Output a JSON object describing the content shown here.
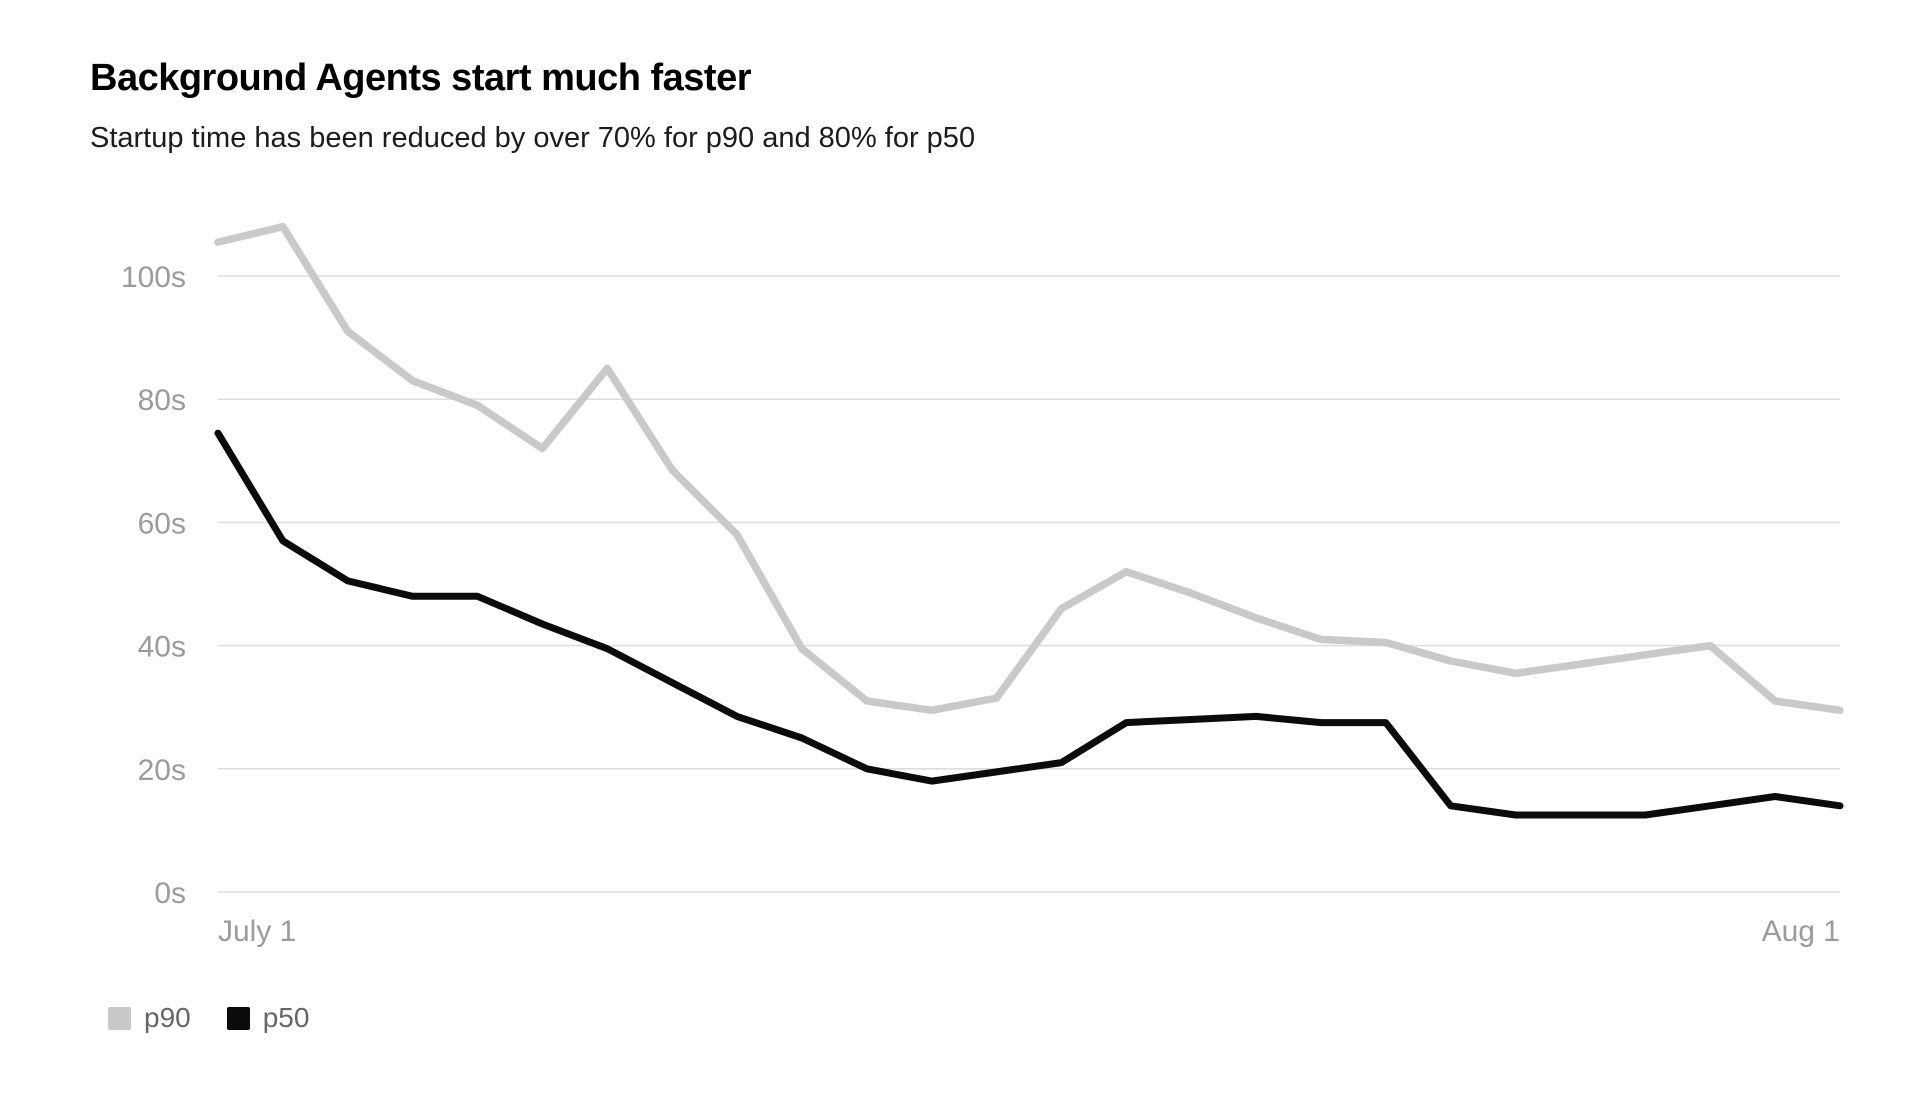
{
  "header": {
    "title": "Background Agents start much faster",
    "subtitle": "Startup time has been reduced by over 70% for p90 and 80% for p50"
  },
  "chart_data": {
    "type": "line",
    "title": "Background Agents start much faster",
    "subtitle": "Startup time has been reduced by over 70% for p90 and 80% for p50",
    "x_axis_labels": [
      "July 1",
      "Aug 1"
    ],
    "n_points": 26,
    "x_range_note": "26 evenly spaced points from July 1 to Aug 1",
    "y_ticks": [
      {
        "label": "0s",
        "value": 0
      },
      {
        "label": "20s",
        "value": 20
      },
      {
        "label": "40s",
        "value": 40
      },
      {
        "label": "60s",
        "value": 60
      },
      {
        "label": "80s",
        "value": 80
      },
      {
        "label": "100s",
        "value": 100
      }
    ],
    "ylim": [
      0,
      100
    ],
    "grid": "horizontal",
    "legend_position": "bottom-left",
    "series": [
      {
        "name": "p90",
        "color": "#c9c9c9",
        "values": [
          105.5,
          108,
          91,
          83,
          79,
          72,
          85,
          68.5,
          58,
          39.5,
          31,
          29.5,
          31.5,
          46,
          52,
          48.5,
          44.5,
          41,
          40.5,
          37.5,
          35.5,
          37,
          38.5,
          40,
          31,
          29.5
        ]
      },
      {
        "name": "p50",
        "color": "#0b0b0b",
        "values": [
          74.5,
          57,
          50.5,
          48,
          48,
          43.5,
          39.5,
          34,
          28.5,
          25,
          20,
          18,
          19.5,
          21,
          27.5,
          28,
          28.5,
          27.5,
          27.5,
          14,
          12.5,
          12.5,
          12.5,
          14,
          15.5,
          14
        ]
      }
    ],
    "colors": {
      "grid": "#dedede",
      "axis_text": "#9b9b9b",
      "background": "#ffffff"
    }
  },
  "legend": {
    "items": [
      {
        "label": "p90",
        "color": "#c9c9c9"
      },
      {
        "label": "p50",
        "color": "#0b0b0b"
      }
    ]
  }
}
